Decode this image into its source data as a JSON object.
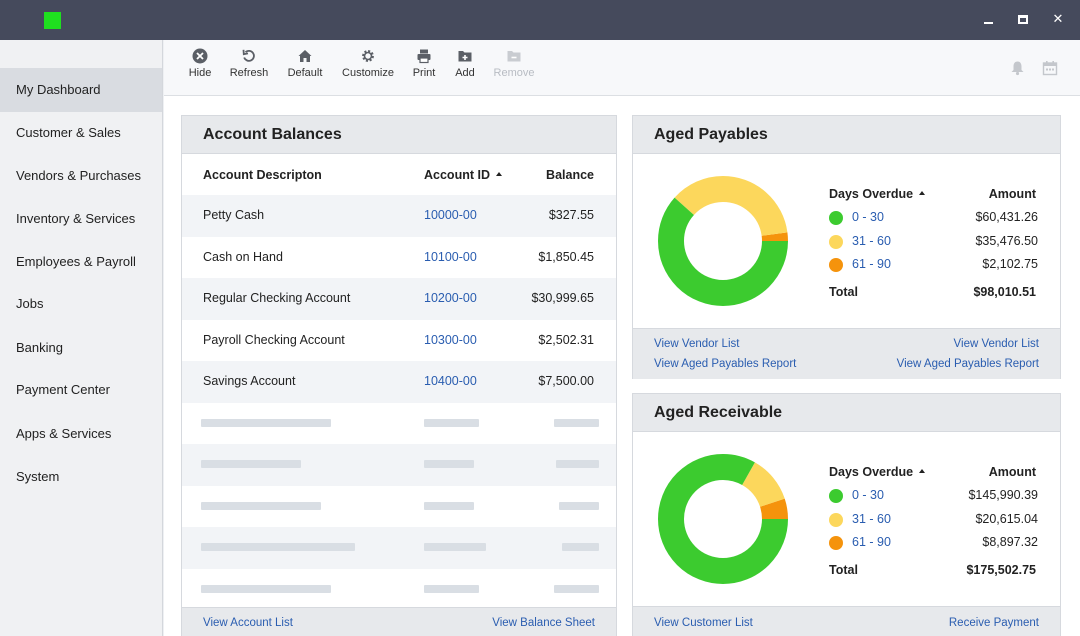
{
  "window": {
    "accent": "#1fe01f",
    "titlebar_color": "#454a5c",
    "min_icon": "minimize-icon",
    "max_icon": "maximize-icon",
    "close_label": "✕"
  },
  "sidebar": {
    "items": [
      {
        "label": "My Dashboard",
        "active": true
      },
      {
        "label": "Customer & Sales"
      },
      {
        "label": "Vendors & Purchases"
      },
      {
        "label": "Inventory & Services"
      },
      {
        "label": "Employees & Payroll"
      },
      {
        "label": "Jobs"
      },
      {
        "label": "Banking"
      },
      {
        "label": "Payment Center"
      },
      {
        "label": "Apps & Services"
      },
      {
        "label": "System"
      }
    ]
  },
  "toolbar": {
    "items": [
      {
        "label": "Hide",
        "icon": "close-circle-icon"
      },
      {
        "label": "Refresh",
        "icon": "refresh-icon"
      },
      {
        "label": "Default",
        "icon": "home-icon"
      },
      {
        "label": "Customize",
        "icon": "gear-icon"
      },
      {
        "label": "Print",
        "icon": "printer-icon"
      },
      {
        "label": "Add",
        "icon": "add-folder-icon"
      },
      {
        "label": "Remove",
        "icon": "remove-folder-icon",
        "disabled": true
      }
    ],
    "right_icons": [
      "bell-icon",
      "calendar-icon"
    ]
  },
  "account_balances": {
    "title": "Account Balances",
    "headers": {
      "description": "Account Descripton",
      "id": "Account ID",
      "balance": "Balance"
    },
    "rows": [
      {
        "description": "Petty Cash",
        "id": "10000-00",
        "balance": "$327.55"
      },
      {
        "description": "Cash on Hand",
        "id": "10100-00",
        "balance": "$1,850.45"
      },
      {
        "description": "Regular Checking Account",
        "id": "10200-00",
        "balance": "$30,999.65"
      },
      {
        "description": "Payroll Checking Account",
        "id": "10300-00",
        "balance": "$2,502.31"
      },
      {
        "description": "Savings Account",
        "id": "10400-00",
        "balance": "$7,500.00"
      }
    ],
    "footer": {
      "left": "View Account List",
      "right": "View Balance Sheet"
    }
  },
  "aged_payables": {
    "title": "Aged Payables",
    "headers": {
      "days": "Days Overdue",
      "amount": "Amount"
    },
    "rows": [
      {
        "range": "0 - 30",
        "amount": "$60,431.26",
        "value": 60431.26,
        "color": "#3ccb2f"
      },
      {
        "range": "31 - 60",
        "amount": "$35,476.50",
        "value": 35476.5,
        "color": "#fcd75c"
      },
      {
        "range": "61 - 90",
        "amount": "$2,102.75",
        "value": 2102.75,
        "color": "#f5930c"
      }
    ],
    "total_label": "Total",
    "total": "$98,010.51",
    "footer": {
      "left_top": "View Vendor List",
      "left_bottom": "View Aged Payables Report",
      "right_top": "View Vendor List",
      "right_bottom": "View Aged Payables Report"
    }
  },
  "aged_receivable": {
    "title": "Aged Receivable",
    "headers": {
      "days": "Days Overdue",
      "amount": "Amount"
    },
    "rows": [
      {
        "range": "0 - 30",
        "amount": "$145,990.39",
        "value": 145990.39,
        "color": "#3ccb2f"
      },
      {
        "range": "31 - 60",
        "amount": "$20,615.04",
        "value": 20615.04,
        "color": "#fcd75c"
      },
      {
        "range": "61 - 90",
        "amount": "$8,897.32",
        "value": 8897.32,
        "color": "#f5930c"
      }
    ],
    "total_label": "Total",
    "total": "$175,502.75",
    "footer": {
      "left": "View Customer List",
      "right": "Receive Payment"
    }
  }
}
